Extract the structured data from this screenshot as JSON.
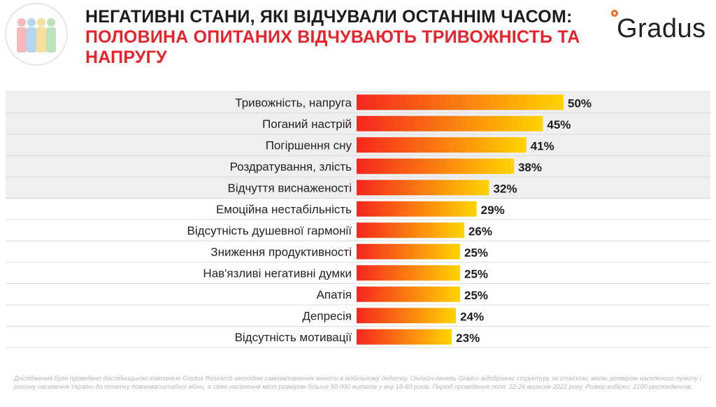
{
  "header": {
    "title_dark": "Негативні стани, які відчували останнім часом:",
    "title_red": "половина опитаних відчувають тривожність та напругу",
    "brand": "Gradus"
  },
  "footnote": "Дослідження було проведено дослідницькою компанією Gradus Research методом самозаповнення анкети в мобільному додатку. Онлайн-панель Gradus відображає структуру за статтю, віком, розміром населеного пункту і регіону населення України до початку повномасштабної війни, а саме населення міст розміром більше 50 000 жителів у віці 18-60 років. Період проведення поля: 22-26 вересня 2022 року. Розмір вибірки: 2100 респондентів.",
  "colors": {
    "bar_start": "#f5261f",
    "bar_end": "#ffd400",
    "highlight_band": "#efefef",
    "title_red": "#e8232b",
    "brand_accent": "#f36b21"
  },
  "chart_data": {
    "type": "bar",
    "orientation": "horizontal",
    "categories": [
      "Тривожність, напруга",
      "Поганий настрій",
      "Погіршення сну",
      "Роздратування, злість",
      "Відчуття виснаженості",
      "Емоційна нестабільність",
      "Відсутність душевної гармонії",
      "Зниження продуктивності",
      "Нав'язливі негативні думки",
      "Апатія",
      "Депресія",
      "Відсутність мотивації"
    ],
    "values": [
      50,
      45,
      41,
      38,
      32,
      29,
      26,
      25,
      25,
      25,
      24,
      23
    ],
    "value_labels": [
      "50%",
      "45%",
      "41%",
      "38%",
      "32%",
      "29%",
      "26%",
      "25%",
      "25%",
      "25%",
      "24%",
      "23%"
    ],
    "highlighted_rows": 5,
    "xlim": [
      0,
      50
    ],
    "grid": false,
    "legend": "none"
  }
}
